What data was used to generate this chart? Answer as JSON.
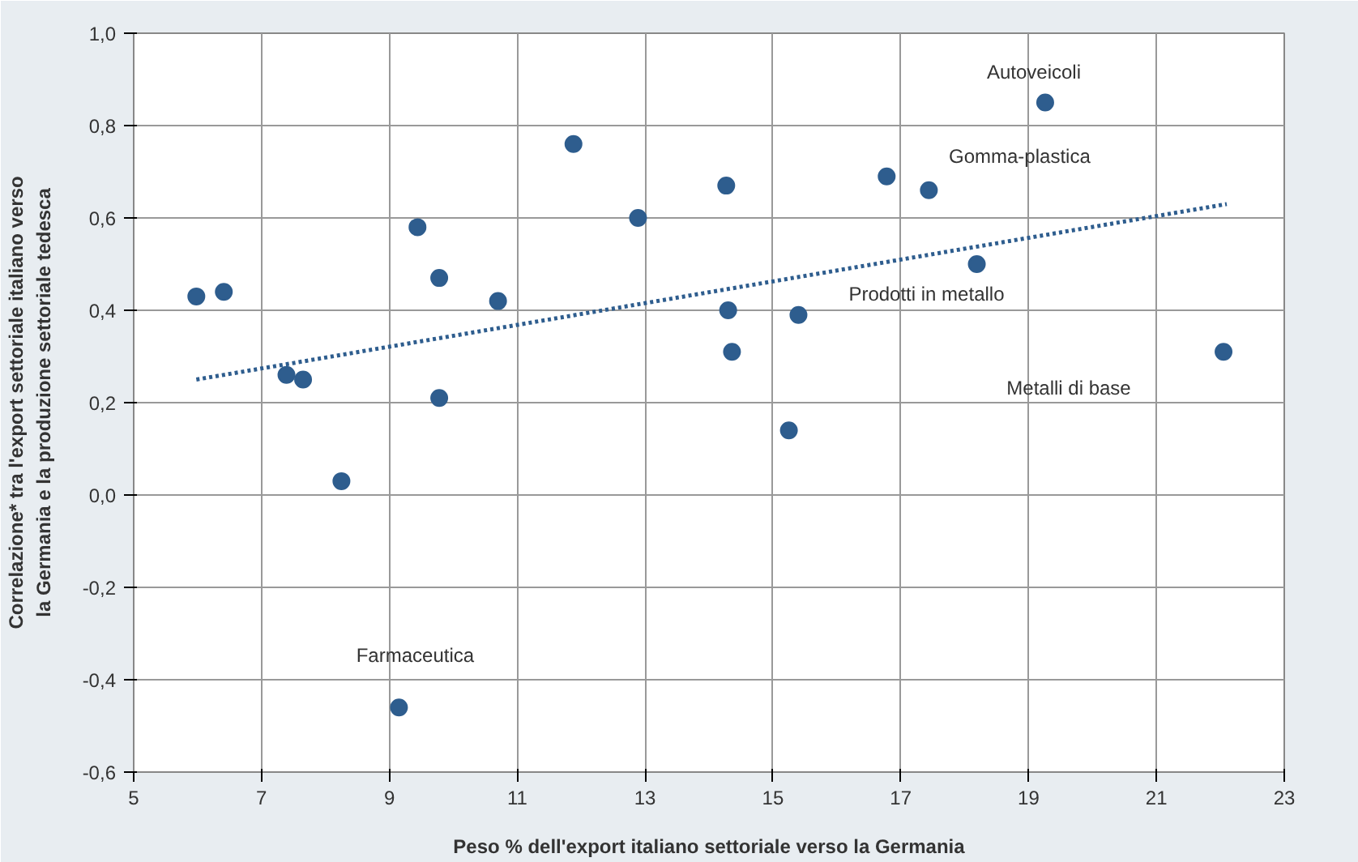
{
  "chart_data": {
    "type": "scatter",
    "xlabel": "Peso % dell'export italiano settoriale verso la Germania",
    "ylabel": "Correlazione* tra l'export settoriale italiano verso\nla Germania e la produzione settoriale tedesca",
    "xlim": [
      5,
      23
    ],
    "ylim": [
      -0.6,
      1.0
    ],
    "xticks": [
      5,
      7,
      9,
      11,
      13,
      15,
      17,
      19,
      21,
      23
    ],
    "yticks": [
      {
        "value": -0.6,
        "label": "-0,6"
      },
      {
        "value": -0.4,
        "label": "-0,4"
      },
      {
        "value": -0.2,
        "label": "-0,2"
      },
      {
        "value": 0,
        "label": "0,0"
      },
      {
        "value": 0.2,
        "label": "0,2"
      },
      {
        "value": 0.4,
        "label": "0,4"
      },
      {
        "value": 0.6,
        "label": "0,6"
      },
      {
        "value": 0.8,
        "label": "0,8"
      },
      {
        "value": 1.0,
        "label": "1,0"
      }
    ],
    "grid": true,
    "marker": "circle",
    "series": [
      {
        "color": "#2e5d8e",
        "x": [
          5.98,
          6.41,
          7.39,
          7.65,
          8.25,
          9.15,
          9.44,
          9.78,
          9.78,
          10.7,
          11.88,
          12.89,
          14.27,
          14.3,
          14.36,
          15.25,
          15.4,
          16.78,
          17.44,
          18.19,
          19.26,
          22.05
        ],
        "values": [
          0.43,
          0.44,
          0.26,
          0.25,
          0.03,
          -0.46,
          0.58,
          0.47,
          0.21,
          0.42,
          0.76,
          0.6,
          0.67,
          0.4,
          0.31,
          0.14,
          0.39,
          0.69,
          0.66,
          0.5,
          0.85,
          0.31
        ]
      },
      {
        "type": "line",
        "color": "#2e5d8e",
        "line_style": "dotted",
        "marker": "none",
        "x": [
          5.98,
          22.1
        ],
        "values": [
          0.25,
          0.63
        ]
      }
    ],
    "annotations": [
      {
        "text": "Autoveicoli",
        "x": 19.26,
        "y": 0.85
      },
      {
        "text": "Gomma-plastica",
        "x": 17.44,
        "y": 0.66
      },
      {
        "text": "Prodotti in metallo",
        "x": 15.4,
        "y": 0.39
      },
      "Metalli di base",
      {
        "text": "Farmaceutica",
        "x": 9.15,
        "y": -0.46
      }
    ]
  }
}
